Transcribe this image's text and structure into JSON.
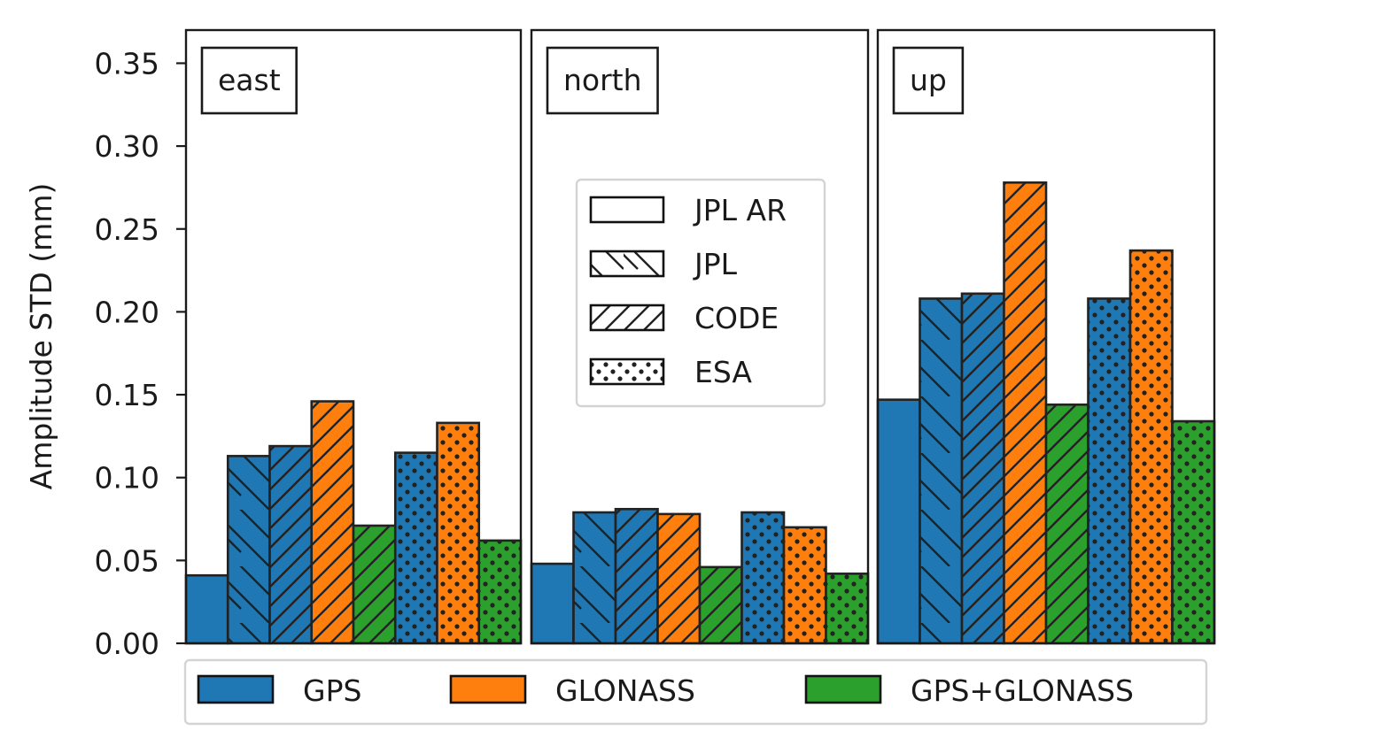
{
  "chart_data": {
    "type": "bar",
    "ylabel": "Amplitude STD (mm)",
    "ylim": [
      0,
      0.37
    ],
    "yticks": [
      0.0,
      0.05,
      0.1,
      0.15,
      0.2,
      0.25,
      0.3,
      0.35
    ],
    "ytick_labels": [
      "0.00",
      "0.05",
      "0.10",
      "0.15",
      "0.20",
      "0.25",
      "0.30",
      "0.35"
    ],
    "grid": false,
    "systems": [
      {
        "name": "GPS",
        "color": "#1f77b4"
      },
      {
        "name": "GLONASS",
        "color": "#ff7f0e"
      },
      {
        "name": "GPS+GLONASS",
        "color": "#2ca02c"
      }
    ],
    "solutions": [
      {
        "name": "JPL AR",
        "hatch": "none"
      },
      {
        "name": "JPL",
        "hatch": "backslash"
      },
      {
        "name": "CODE",
        "hatch": "slash"
      },
      {
        "name": "ESA",
        "hatch": "dots"
      }
    ],
    "bar_order": [
      {
        "system": "GPS",
        "solution": "JPL AR"
      },
      {
        "system": "GPS",
        "solution": "JPL"
      },
      {
        "system": "GPS",
        "solution": "CODE"
      },
      {
        "system": "GLONASS",
        "solution": "CODE"
      },
      {
        "system": "GPS+GLONASS",
        "solution": "CODE"
      },
      {
        "system": "GPS",
        "solution": "ESA"
      },
      {
        "system": "GLONASS",
        "solution": "ESA"
      },
      {
        "system": "GPS+GLONASS",
        "solution": "ESA"
      }
    ],
    "panels": [
      {
        "label": "east",
        "values": [
          0.041,
          0.113,
          0.119,
          0.146,
          0.071,
          0.115,
          0.133,
          0.062
        ]
      },
      {
        "label": "north",
        "values": [
          0.048,
          0.079,
          0.081,
          0.078,
          0.046,
          0.079,
          0.07,
          0.042
        ]
      },
      {
        "label": "up",
        "values": [
          0.147,
          0.208,
          0.211,
          0.278,
          0.144,
          0.208,
          0.237,
          0.134
        ]
      }
    ],
    "solution_legend_placement": "inside north panel, center",
    "system_legend_placement": "bottom, below panels"
  }
}
